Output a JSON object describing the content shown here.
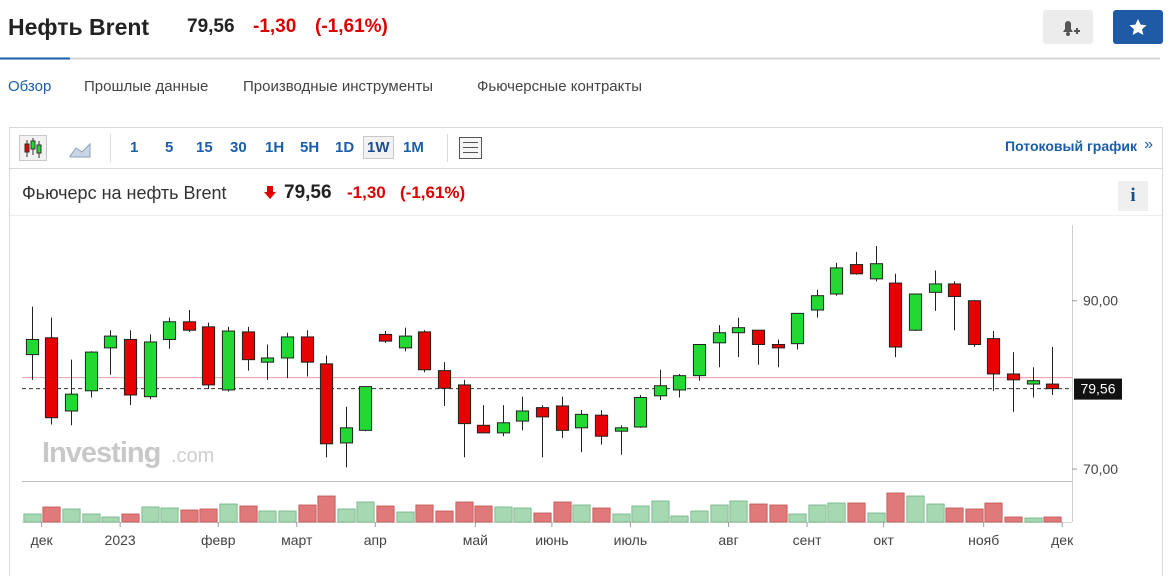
{
  "header": {
    "title": "Нефть Brent",
    "price": "79,56",
    "change": "-1,30",
    "change_pct": "(-1,61%)"
  },
  "tabs": [
    {
      "label": "Обзор",
      "selected": true
    },
    {
      "label": "Прошлые данные",
      "selected": false
    },
    {
      "label": "Производные инструменты",
      "selected": false
    },
    {
      "label": "Фьючерсные контракты",
      "selected": false
    }
  ],
  "toolbar": {
    "intervals": [
      {
        "label": "1",
        "selected": false
      },
      {
        "label": "5",
        "selected": false
      },
      {
        "label": "15",
        "selected": false
      },
      {
        "label": "30",
        "selected": false
      },
      {
        "label": "1H",
        "selected": false
      },
      {
        "label": "5H",
        "selected": false
      },
      {
        "label": "1D",
        "selected": false
      },
      {
        "label": "1W",
        "selected": true
      },
      {
        "label": "1M",
        "selected": false
      }
    ],
    "stream_link": "Потоковый график",
    "stream_arrow": "»"
  },
  "chart_data": {
    "type": "candlestick",
    "title": "Фьючерс на нефть Brent",
    "price": "79,56",
    "change": "-1,30",
    "change_pct": "(-1,61%)",
    "watermark": "Investing",
    "watermark_suffix": ".com",
    "info": "i",
    "open": [
      83.6,
      85.6,
      76.9,
      79.3,
      84.4,
      85.4,
      78.6,
      85.4,
      87.5,
      86.9,
      79.4,
      86.3,
      82.7,
      83.2,
      85.7,
      82.5,
      73.1,
      74.6,
      86.0,
      84.4,
      86.3,
      81.7,
      80.0,
      75.2,
      74.3,
      75.7,
      77.3,
      77.5,
      74.9,
      76.4,
      74.5,
      75.0,
      78.7,
      79.4,
      81.1,
      85.0,
      86.2,
      86.5,
      84.8,
      84.9,
      88.9,
      90.8,
      94.3,
      92.6,
      92.1,
      86.5,
      91.0,
      92.0,
      90.0,
      85.5,
      81.3,
      80.1,
      80.1
    ],
    "high": [
      89.3,
      88.0,
      83.0,
      84.0,
      86.5,
      86.5,
      86.0,
      88.0,
      88.9,
      87.4,
      86.9,
      86.9,
      84.8,
      86.2,
      86.5,
      83.5,
      77.4,
      79.8,
      86.4,
      86.8,
      86.5,
      82.7,
      80.6,
      77.6,
      77.6,
      78.6,
      77.6,
      78.6,
      77.0,
      77.0,
      75.2,
      78.8,
      81.8,
      81.3,
      84.8,
      87.1,
      88.0,
      86.5,
      85.4,
      88.5,
      91.3,
      94.5,
      95.8,
      96.5,
      93.2,
      90.8,
      93.6,
      92.3,
      90.1,
      86.4,
      83.9,
      82.1,
      84.5
    ],
    "low": [
      80.6,
      75.3,
      75.2,
      78.5,
      81.2,
      77.6,
      78.3,
      84.3,
      86.3,
      79.5,
      79.2,
      81.7,
      80.6,
      80.8,
      81.0,
      71.4,
      70.2,
      74.5,
      85.0,
      84.0,
      81.5,
      77.5,
      71.4,
      74.3,
      73.9,
      74.6,
      71.4,
      73.7,
      72.0,
      72.9,
      71.7,
      74.9,
      78.2,
      78.5,
      80.5,
      82.1,
      83.3,
      82.4,
      82.1,
      84.2,
      88.0,
      90.6,
      93.1,
      92.3,
      83.3,
      86.4,
      88.8,
      86.5,
      84.5,
      79.3,
      76.8,
      78.5,
      78.8
    ],
    "close": [
      85.4,
      76.1,
      78.9,
      83.9,
      85.8,
      78.8,
      85.1,
      87.5,
      86.5,
      80.0,
      86.4,
      83.0,
      83.2,
      85.7,
      82.7,
      73.0,
      74.9,
      79.8,
      85.2,
      85.8,
      81.8,
      79.6,
      75.4,
      74.3,
      75.5,
      76.9,
      76.2,
      74.6,
      76.5,
      73.9,
      74.9,
      78.5,
      79.9,
      81.1,
      84.8,
      86.2,
      86.8,
      84.8,
      84.4,
      88.5,
      90.6,
      93.9,
      93.2,
      94.4,
      84.5,
      90.8,
      92.0,
      90.5,
      84.8,
      81.3,
      80.6,
      80.5,
      79.56
    ],
    "volume": [
      8,
      15,
      13,
      8,
      5,
      8,
      15,
      14,
      12,
      13,
      18,
      16,
      11,
      11,
      17,
      26,
      13,
      20,
      16,
      10,
      17,
      11,
      20,
      16,
      15,
      14,
      9,
      20,
      17,
      14,
      8,
      16,
      21,
      6,
      11,
      17,
      21,
      18,
      17,
      8,
      17,
      19,
      19,
      9,
      29,
      26,
      18,
      14,
      13,
      19,
      5,
      4,
      5
    ],
    "vlim": [
      0,
      40
    ],
    "up_color": "#22d934",
    "down_color": "#e60000",
    "up_volume_color": "#a6d9b2",
    "down_volume_color": "#e07a7a",
    "xlim": [
      -0.5,
      53
    ],
    "xticks": [
      {
        "value": 0.5,
        "label": "дек"
      },
      {
        "value": 4.5,
        "label": "2023"
      },
      {
        "value": 9.5,
        "label": "февр"
      },
      {
        "value": 13.5,
        "label": "март"
      },
      {
        "value": 17.5,
        "label": "апр"
      },
      {
        "value": 22.6,
        "label": "май"
      },
      {
        "value": 26.5,
        "label": "июнь"
      },
      {
        "value": 30.5,
        "label": "июль"
      },
      {
        "value": 35.5,
        "label": "авг"
      },
      {
        "value": 39.5,
        "label": "сент"
      },
      {
        "value": 43.4,
        "label": "окт"
      },
      {
        "value": 48.5,
        "label": "нояб"
      },
      {
        "value": 52.5,
        "label": "дек"
      }
    ],
    "ylim": [
      68.7,
      99
    ],
    "yticks": [
      {
        "value": 90,
        "label": "90,00"
      },
      {
        "value": 70,
        "label": "70,00"
      }
    ],
    "last_price": {
      "value": 79.56,
      "label": "79,56"
    },
    "previous_close": 80.86
  }
}
